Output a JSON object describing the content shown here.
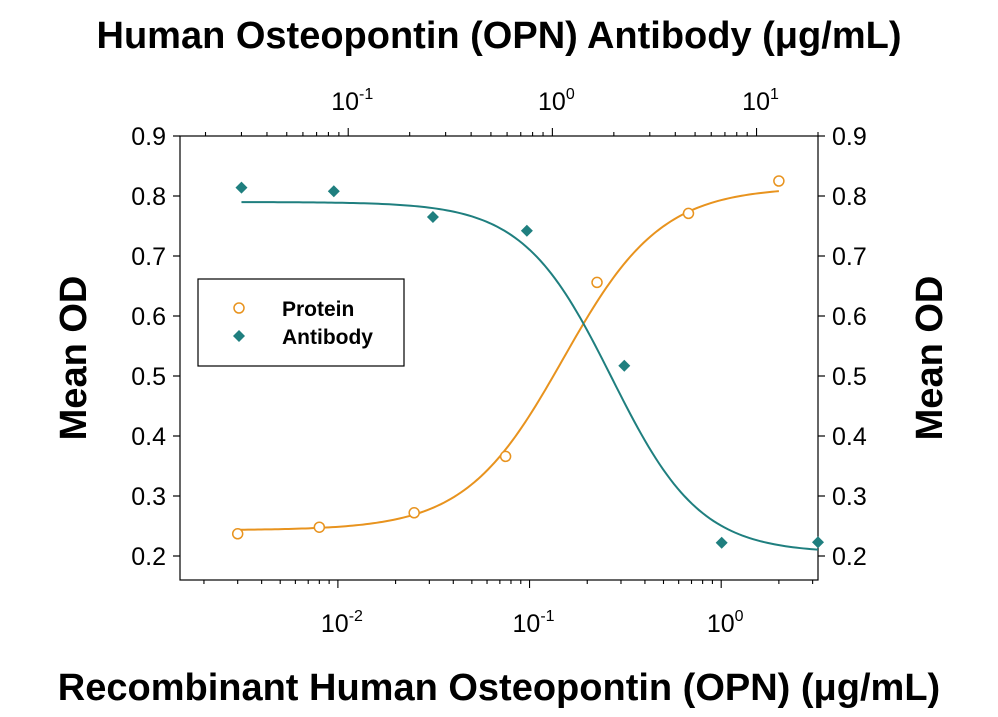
{
  "chart_data": {
    "type": "scatter",
    "title": "Human Osteopontin (OPN) Antibody (μg/mL)",
    "xlabel": "Recombinant Human Osteopontin (OPN) (μg/mL)",
    "ylabel": "Mean OD",
    "ylabel_right": "Mean OD",
    "x_scale": "log",
    "x_bottom_range": [
      0.0015,
      3.2
    ],
    "x_top_range": [
      0.015,
      20
    ],
    "ylim": [
      0.16,
      0.9
    ],
    "y_ticks": [
      "0.9",
      "0.8",
      "0.7",
      "0.6",
      "0.5",
      "0.4",
      "0.3",
      "0.2"
    ],
    "x_bottom_ticks": [
      {
        "base": "10",
        "exp": "-2"
      },
      {
        "base": "10",
        "exp": "-1"
      },
      {
        "base": "10",
        "exp": "0"
      }
    ],
    "x_top_ticks": [
      {
        "base": "10",
        "exp": "-1"
      },
      {
        "base": "10",
        "exp": "0"
      },
      {
        "base": "10",
        "exp": "1"
      }
    ],
    "legend_position": "left-middle",
    "grid": false,
    "series": [
      {
        "name": "Protein",
        "axis": "bottom",
        "marker": "open-circle",
        "color": "#e8931e",
        "points": [
          {
            "x": 0.003,
            "y": 0.237
          },
          {
            "x": 0.008,
            "y": 0.248
          },
          {
            "x": 0.025,
            "y": 0.272
          },
          {
            "x": 0.075,
            "y": 0.366
          },
          {
            "x": 0.225,
            "y": 0.656
          },
          {
            "x": 0.675,
            "y": 0.771
          },
          {
            "x": 2.0,
            "y": 0.825
          }
        ],
        "fit": {
          "bottom": 0.243,
          "top": 0.815,
          "ec50": 0.15,
          "hill": 1.7,
          "x_start": 0.003,
          "x_end": 2.0
        }
      },
      {
        "name": "Antibody",
        "axis": "top",
        "marker": "filled-diamond",
        "color": "#1f7f7f",
        "points": [
          {
            "x": 0.03,
            "y": 0.814
          },
          {
            "x": 0.085,
            "y": 0.808
          },
          {
            "x": 0.26,
            "y": 0.765
          },
          {
            "x": 0.75,
            "y": 0.742
          },
          {
            "x": 2.25,
            "y": 0.517
          },
          {
            "x": 6.75,
            "y": 0.222
          },
          {
            "x": 20.0,
            "y": 0.223
          }
        ],
        "fit": {
          "bottom": 0.205,
          "top": 0.79,
          "ec50": 1.95,
          "hill": 2.0,
          "x_start": 0.03,
          "x_end": 20.0
        }
      }
    ]
  }
}
